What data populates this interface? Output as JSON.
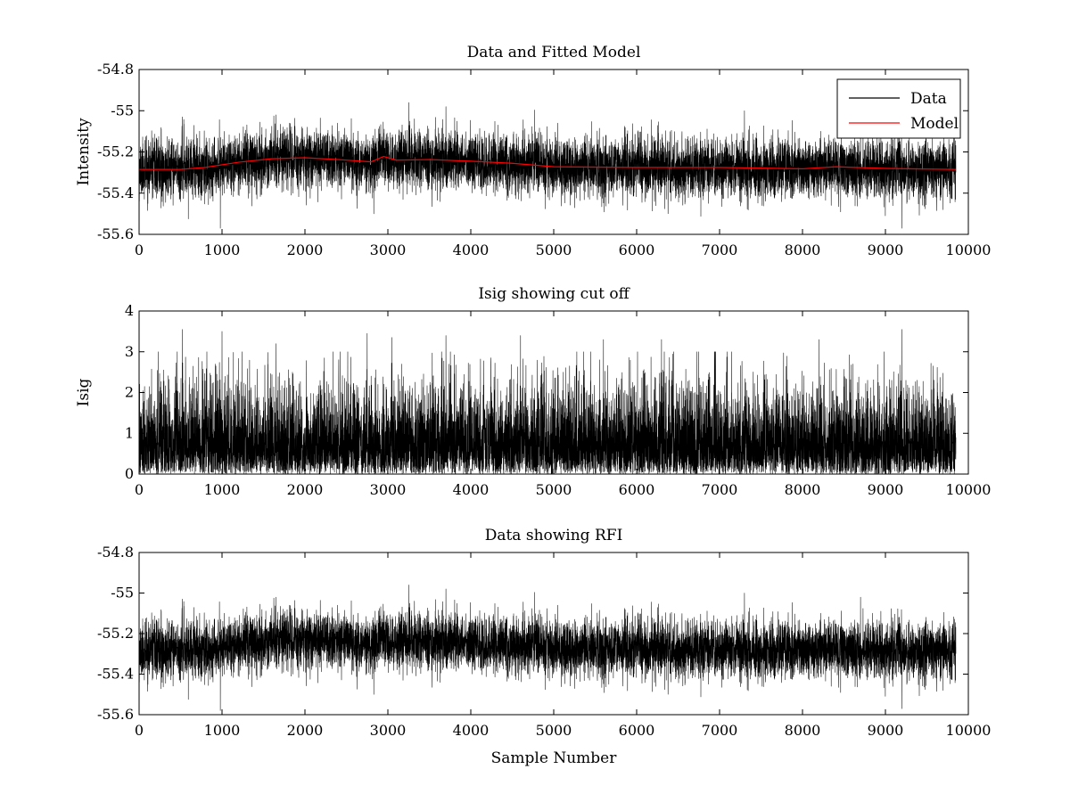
{
  "figure": {
    "background": "#ffffff"
  },
  "chart_data": [
    {
      "type": "line",
      "title": "Data and Fitted Model",
      "xlabel": "",
      "ylabel": "Intensity",
      "xlim": [
        0,
        10000
      ],
      "ylim": [
        -55.6,
        -54.8
      ],
      "xticks": [
        0,
        1000,
        2000,
        3000,
        4000,
        5000,
        6000,
        7000,
        8000,
        9000,
        10000
      ],
      "xtick_labels": [
        "0",
        "1000",
        "2000",
        "3000",
        "4000",
        "5000",
        "6000",
        "7000",
        "8000",
        "9000",
        "10000"
      ],
      "yticks": [
        -55.6,
        -55.4,
        -55.2,
        -55,
        -54.8
      ],
      "ytick_labels": [
        "-55.6",
        "-55.4",
        "-55.2",
        "-55",
        "-54.8"
      ],
      "legend": {
        "position": "top-right",
        "entries": [
          "Data",
          "Model"
        ]
      },
      "series": [
        {
          "name": "Data",
          "color": "#000000",
          "kind": "noise",
          "n_points": 9850,
          "x_range": [
            0,
            9850
          ],
          "baseline": "Model",
          "noise_std": 0.07,
          "seed": 11,
          "spikes": [
            [
              520,
              -55.03
            ],
            [
              980,
              -55.57
            ],
            [
              1650,
              -55.02
            ],
            [
              2830,
              -55.5
            ],
            [
              3250,
              -54.96
            ],
            [
              3700,
              -54.98
            ],
            [
              5050,
              -55.06
            ],
            [
              7300,
              -55.0
            ],
            [
              8700,
              -55.02
            ],
            [
              9200,
              -55.57
            ]
          ]
        },
        {
          "name": "Model",
          "color": "#ff0000",
          "kind": "line",
          "x": [
            0,
            500,
            800,
            1200,
            1600,
            2000,
            2400,
            2800,
            2950,
            3100,
            3500,
            4000,
            4500,
            5000,
            6000,
            7000,
            8000,
            8400,
            9000,
            9850
          ],
          "y": [
            -55.285,
            -55.285,
            -55.275,
            -55.25,
            -55.233,
            -55.228,
            -55.237,
            -55.248,
            -55.222,
            -55.24,
            -55.237,
            -55.245,
            -55.255,
            -55.272,
            -55.275,
            -55.275,
            -55.282,
            -55.272,
            -55.28,
            -55.285
          ]
        }
      ]
    },
    {
      "type": "line",
      "title": "Isig showing cut off",
      "xlabel": "",
      "ylabel": "Isig",
      "xlim": [
        0,
        10000
      ],
      "ylim": [
        0,
        4
      ],
      "xticks": [
        0,
        1000,
        2000,
        3000,
        4000,
        5000,
        6000,
        7000,
        8000,
        9000,
        10000
      ],
      "xtick_labels": [
        "0",
        "1000",
        "2000",
        "3000",
        "4000",
        "5000",
        "6000",
        "7000",
        "8000",
        "9000",
        "10000"
      ],
      "yticks": [
        0,
        1,
        2,
        3,
        4
      ],
      "ytick_labels": [
        "0",
        "1",
        "2",
        "3",
        "4"
      ],
      "series": [
        {
          "name": "Isig",
          "color": "#000000",
          "kind": "halfnormal",
          "n_points": 9850,
          "x_range": [
            0,
            9850
          ],
          "scale": 1.0,
          "seed": 23,
          "spikes": [
            [
              520,
              3.55
            ],
            [
              1000,
              3.5
            ],
            [
              1650,
              3.2
            ],
            [
              2750,
              3.45
            ],
            [
              3050,
              3.35
            ],
            [
              3700,
              3.4
            ],
            [
              4600,
              3.4
            ],
            [
              5600,
              3.3
            ],
            [
              6300,
              3.3
            ],
            [
              8200,
              3.3
            ],
            [
              9200,
              3.55
            ]
          ]
        }
      ]
    },
    {
      "type": "line",
      "title": "Data showing RFI",
      "xlabel": "Sample Number",
      "ylabel": "",
      "xlim": [
        0,
        10000
      ],
      "ylim": [
        -55.6,
        -54.8
      ],
      "xticks": [
        0,
        1000,
        2000,
        3000,
        4000,
        5000,
        6000,
        7000,
        8000,
        9000,
        10000
      ],
      "xtick_labels": [
        "0",
        "1000",
        "2000",
        "3000",
        "4000",
        "5000",
        "6000",
        "7000",
        "8000",
        "9000",
        "10000"
      ],
      "yticks": [
        -55.6,
        -55.4,
        -55.2,
        -55,
        -54.8
      ],
      "ytick_labels": [
        "-55.6",
        "-55.4",
        "-55.2",
        "-55",
        "-54.8"
      ],
      "series": [
        {
          "name": "Data",
          "color": "#000000",
          "kind": "noise",
          "n_points": 9850,
          "x_range": [
            0,
            9850
          ],
          "baseline": "Model",
          "noise_std": 0.07,
          "seed": 11,
          "spikes": [
            [
              520,
              -55.03
            ],
            [
              980,
              -55.58
            ],
            [
              1650,
              -55.02
            ],
            [
              2830,
              -55.5
            ],
            [
              3250,
              -54.96
            ],
            [
              3700,
              -54.98
            ],
            [
              5050,
              -55.06
            ],
            [
              7300,
              -55.0
            ],
            [
              8700,
              -55.02
            ],
            [
              9200,
              -55.57
            ]
          ]
        }
      ]
    }
  ]
}
